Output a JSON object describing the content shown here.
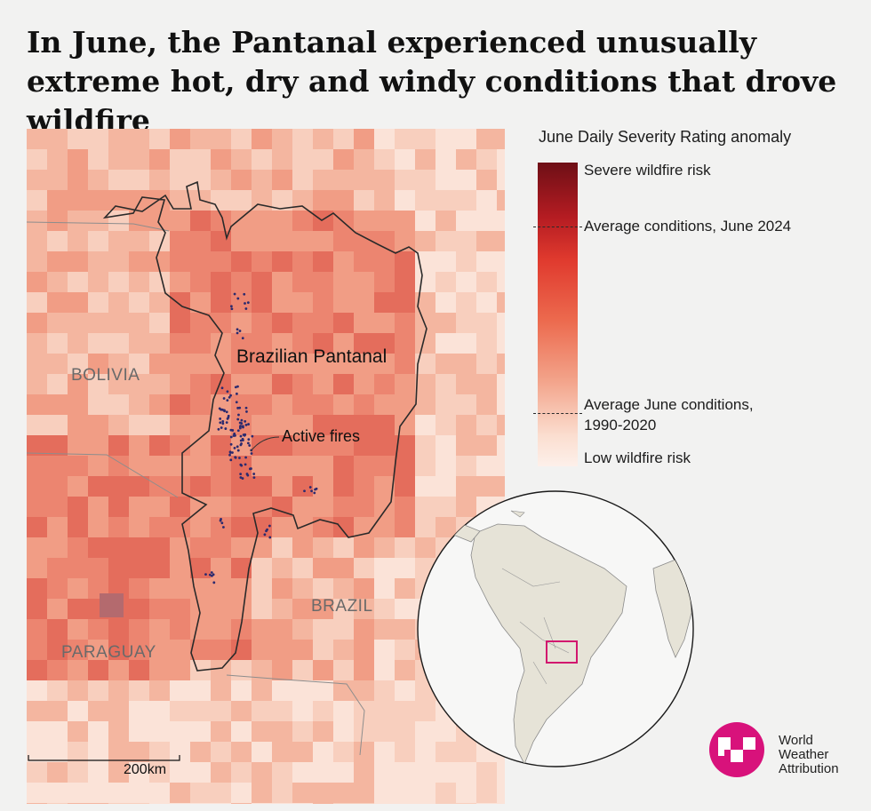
{
  "title": "In June, the Pantanal experienced unusually extreme hot, dry and windy conditions that drove wildfire",
  "legend": {
    "title": "June Daily Severity Rating anomaly",
    "top_label": "Severe wildfire risk",
    "avg_2024_label": "Average conditions, June 2024",
    "avg_hist_label_line1": "Average June conditions,",
    "avg_hist_label_line2": "1990-2020",
    "bottom_label": "Low wildfire risk",
    "colors": [
      "#6e0f16",
      "#b51c22",
      "#e03a2e",
      "#ec6a4e",
      "#f3a48b",
      "#fbded0",
      "#fdf0ea"
    ]
  },
  "map": {
    "labels": {
      "pantanal": "Brazilian Pantanal",
      "fires": "Active fires",
      "bolivia": "BOLIVIA",
      "brazil": "BRAZIL",
      "paraguay": "PARAGUAY"
    },
    "scale_bar": "200km",
    "fire_color": "#2b2a6e",
    "highlight_box_color": "#d2176e"
  },
  "logo": {
    "line1": "World",
    "line2": "Weather",
    "line3": "Attribution",
    "color": "#d8127b"
  }
}
